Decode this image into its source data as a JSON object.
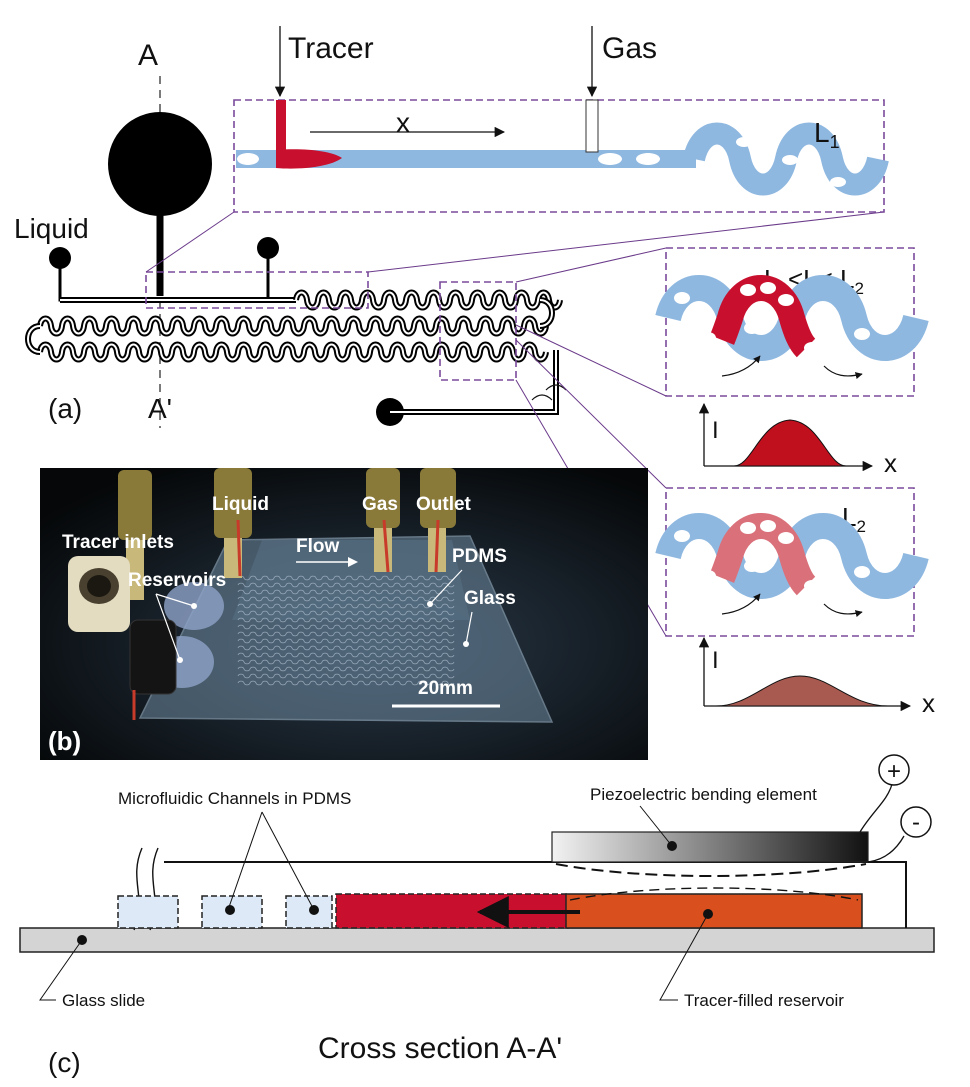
{
  "panel_a": {
    "label": "(a)",
    "section_top": "A",
    "section_bottom": "A'",
    "liquid": "Liquid",
    "tracer": "Tracer",
    "gas": "Gas",
    "x_axis": "x",
    "l1": "L",
    "l1_sub": "1",
    "middle_label_parts": [
      "L",
      "1",
      "<L< L",
      "2"
    ],
    "l2": "L",
    "l2_sub": "2",
    "plot_i": "I",
    "plot_x": "x"
  },
  "panel_b": {
    "label": "(b)",
    "liquid": "Liquid",
    "gas": "Gas",
    "outlet": "Outlet",
    "tracer_inlets": "Tracer inlets",
    "flow": "Flow",
    "reservoirs": "Reservoirs",
    "pdms": "PDMS",
    "glass": "Glass",
    "scale": "20mm"
  },
  "panel_c": {
    "label": "(c)",
    "channels": "Microfluidic Channels in PDMS",
    "piezo": "Piezoelectric bending element",
    "plus": "+",
    "minus": "-",
    "glass_slide": "Glass slide",
    "reservoir": "Tracer-filled reservoir",
    "caption": "Cross section A-A'"
  },
  "colors": {
    "liquid_blue": "#8fb8e0",
    "tracer_red": "#c8102e",
    "tracer_pink": "#d9707a",
    "reservoir_orange": "#d9501e",
    "box_purple": "#7a4a9a",
    "peak1": "#c0101e",
    "peak2": "#a85a50"
  }
}
